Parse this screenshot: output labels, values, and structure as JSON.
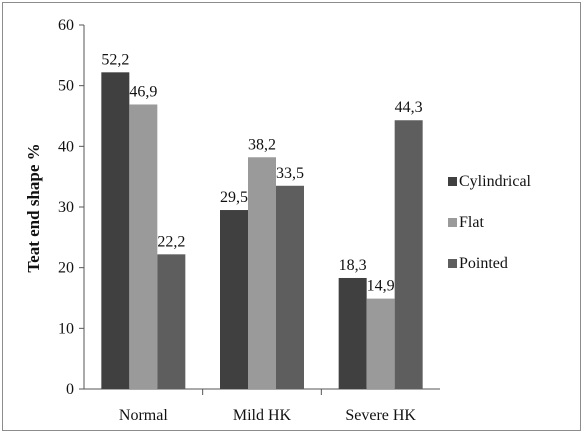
{
  "chart_data": {
    "type": "bar",
    "title": "",
    "xlabel": "",
    "ylabel": "Teat end shape %",
    "ylim": [
      0,
      60
    ],
    "yticks": [
      "0",
      "10",
      "20",
      "30",
      "40",
      "50",
      "60"
    ],
    "categories": [
      "Normal",
      "Mild HK",
      "Severe HK"
    ],
    "series": [
      {
        "name": "Cylindrical",
        "values": [
          52.2,
          29.5,
          18.3
        ],
        "labels": [
          "52,2",
          "29,5",
          "18,3"
        ],
        "color": "#404040"
      },
      {
        "name": "Flat",
        "values": [
          46.9,
          38.2,
          14.9
        ],
        "labels": [
          "46,9",
          "38,2",
          "14,9"
        ],
        "color": "#9a9a9a"
      },
      {
        "name": "Pointed",
        "values": [
          22.2,
          33.5,
          44.3
        ],
        "labels": [
          "22,2",
          "33,5",
          "44,3"
        ],
        "color": "#5e5e5e"
      }
    ],
    "grid": false,
    "legend_position": "right"
  }
}
